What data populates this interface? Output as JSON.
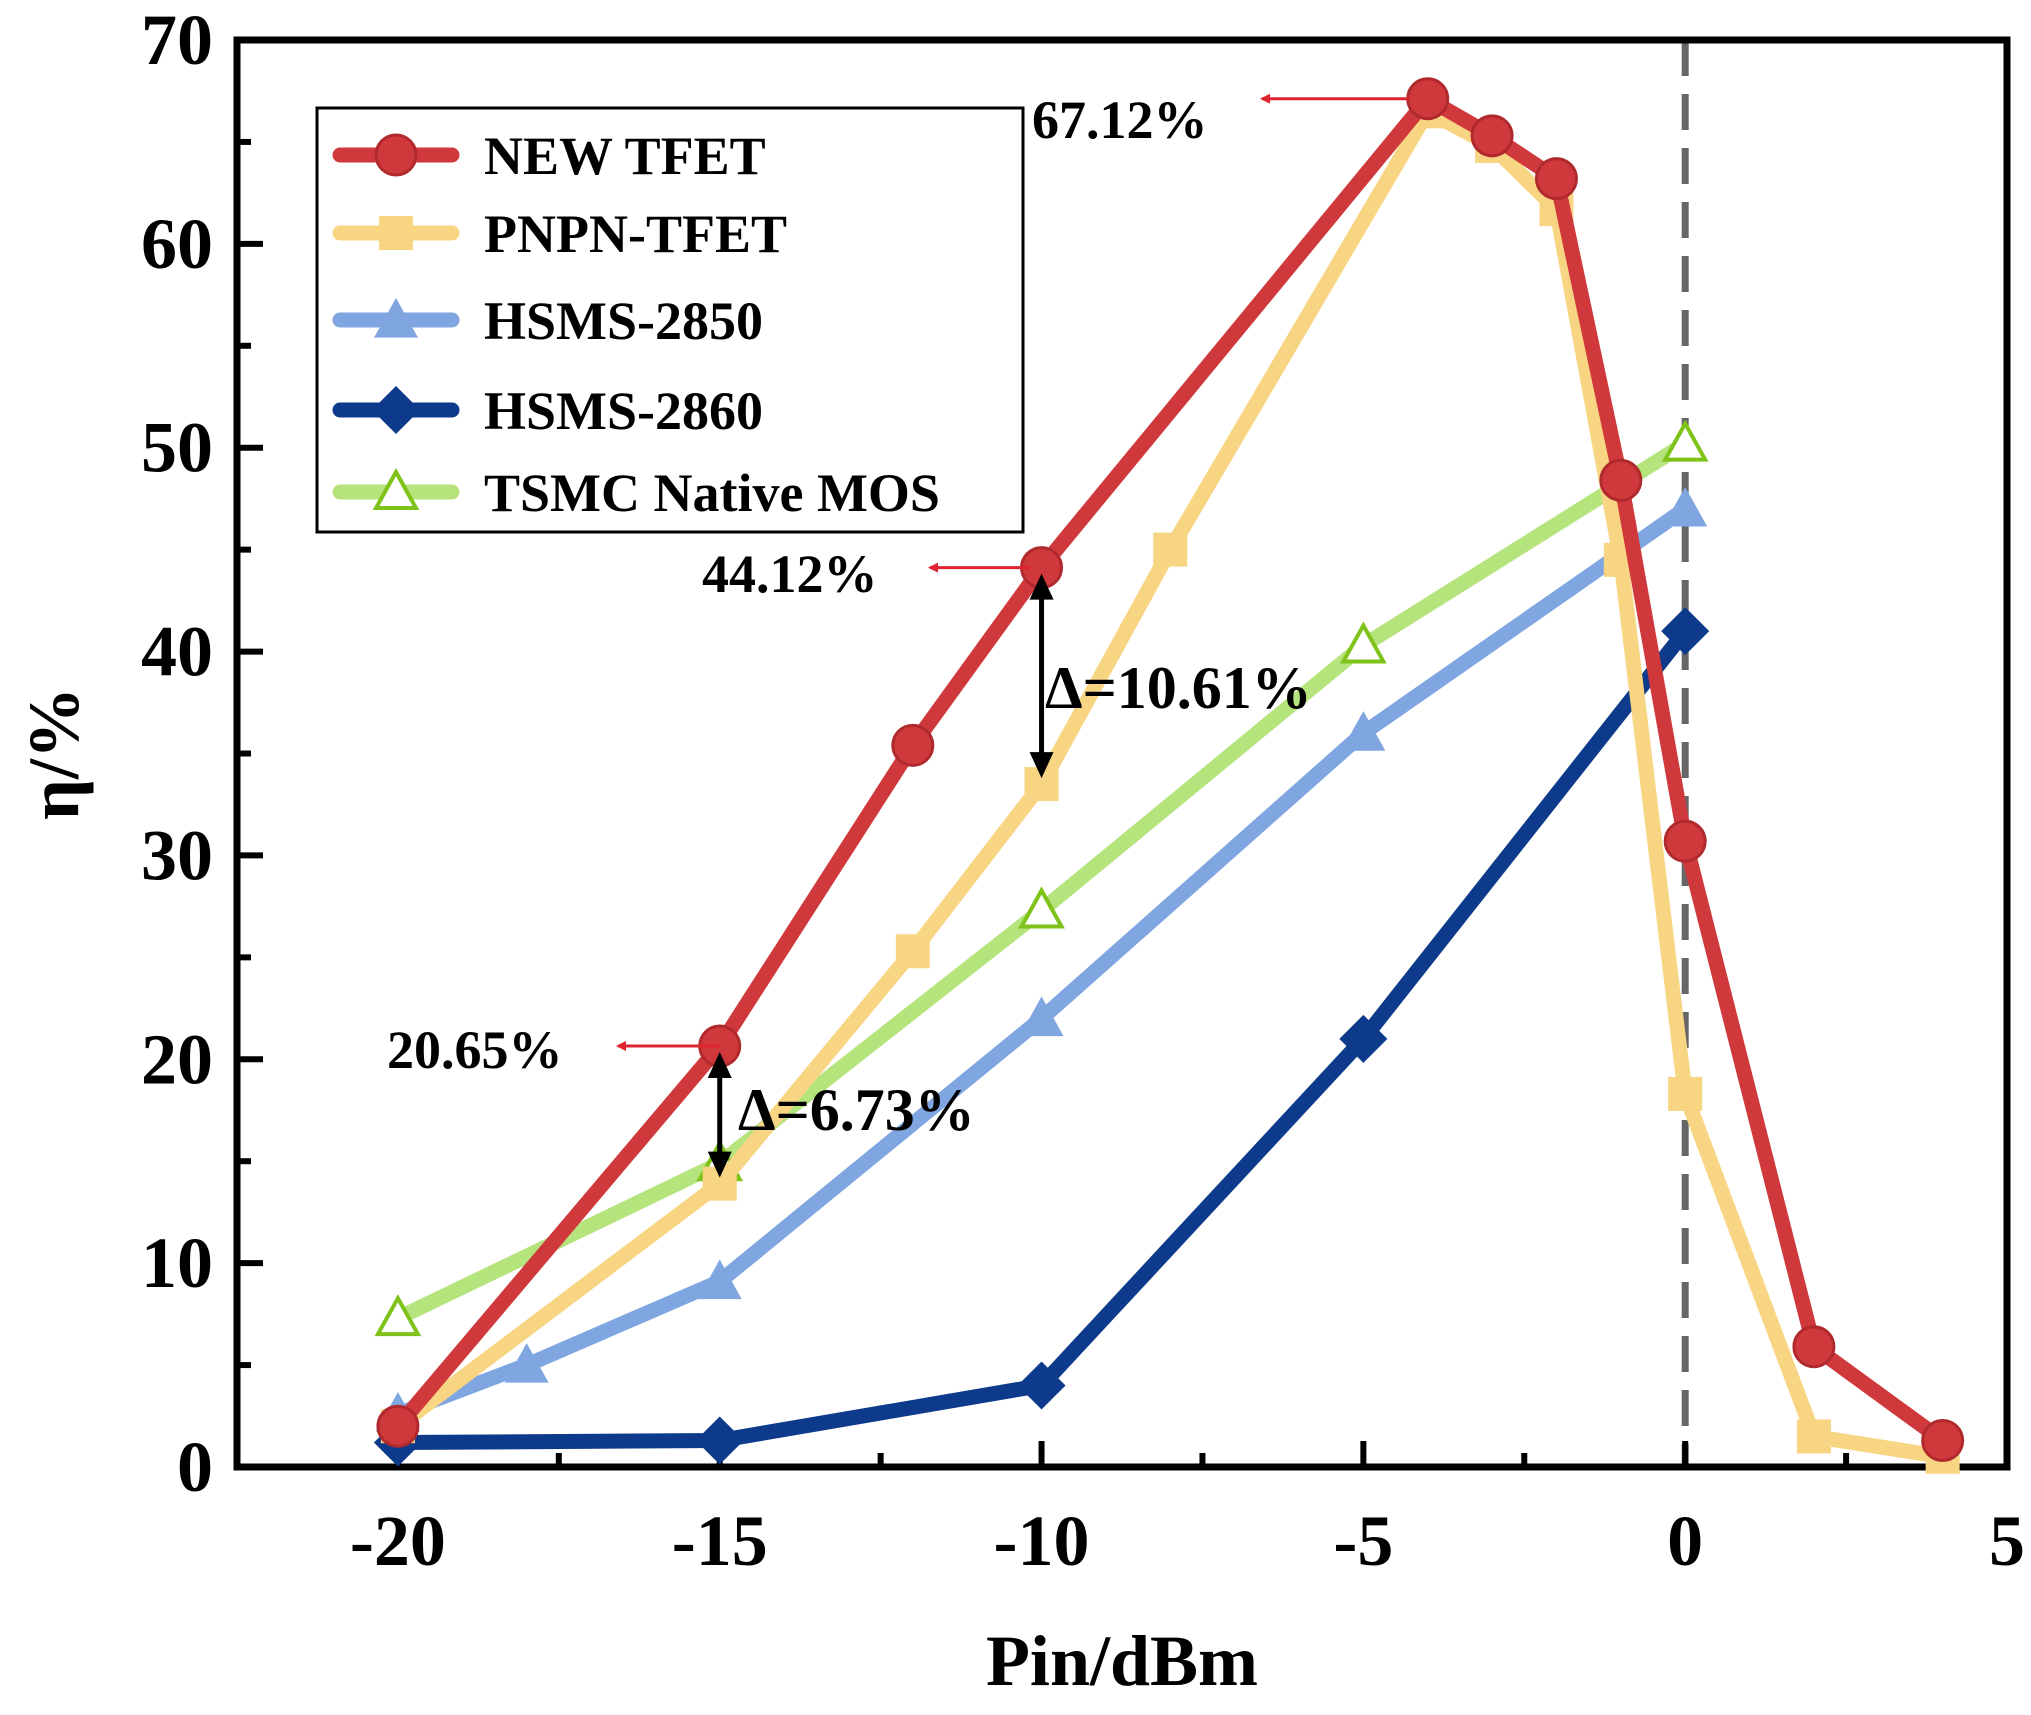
{
  "chart_data": {
    "type": "line",
    "title": "",
    "xlabel": "Pin/dBm",
    "ylabel": "η/%",
    "xlim": [
      -22.5,
      5
    ],
    "ylim": [
      0,
      70
    ],
    "xticks": [
      -20,
      -15,
      -10,
      -5,
      0,
      5
    ],
    "yticks": [
      0,
      10,
      20,
      30,
      40,
      50,
      60,
      70
    ],
    "xtick_labels": [
      "-20",
      "-15",
      "-10",
      "-5",
      "0",
      "5"
    ],
    "ytick_labels": [
      "0",
      "10",
      "20",
      "30",
      "40",
      "50",
      "60",
      "70"
    ],
    "reference_line_x": 0,
    "legend_position": "top-left",
    "series": [
      {
        "name": "TSMC Native MOS",
        "color": "#b5e37c",
        "marker": "triangle-open",
        "x": [
          -20,
          -15,
          -10,
          -5,
          0
        ],
        "y": [
          7.3,
          14.9,
          27.3,
          40.3,
          50.2
        ]
      },
      {
        "name": "HSMS-2850",
        "color": "#7fa6e0",
        "marker": "triangle",
        "x": [
          -20,
          -18,
          -15,
          -10,
          -5,
          0
        ],
        "y": [
          2.6,
          5.0,
          9.1,
          22.0,
          36.0,
          47.0
        ]
      },
      {
        "name": "HSMS-2860",
        "color": "#0d3a8a",
        "marker": "diamond",
        "x": [
          -20,
          -15,
          -10,
          -5,
          0
        ],
        "y": [
          1.2,
          1.3,
          4.0,
          21.0,
          41.0
        ]
      },
      {
        "name": "PNPN-TFET",
        "color": "#f8d582",
        "marker": "square",
        "x": [
          -20,
          -15,
          -12,
          -10,
          -8,
          -4,
          -3,
          -2,
          -1,
          0,
          2,
          4
        ],
        "y": [
          2.0,
          13.9,
          25.3,
          33.5,
          45.0,
          66.5,
          64.8,
          61.7,
          44.5,
          18.3,
          1.5,
          0.5
        ]
      },
      {
        "name": "NEW TFET",
        "color": "#d0393b",
        "marker": "circle",
        "x": [
          -20,
          -15,
          -12,
          -10,
          -4,
          -3,
          -2,
          -1,
          0,
          2,
          4
        ],
        "y": [
          2.0,
          20.65,
          35.4,
          44.12,
          67.12,
          65.3,
          63.2,
          48.4,
          30.7,
          5.9,
          1.3
        ]
      }
    ],
    "legend_order": [
      "NEW TFET",
      "PNPN-TFET",
      "HSMS-2850",
      "HSMS-2860",
      "TSMC Native MOS"
    ],
    "annotations": [
      {
        "text": "67.12%",
        "x": -4,
        "y": 67.12
      },
      {
        "text": "44.12%",
        "x": -10,
        "y": 44.12
      },
      {
        "text": "20.65%",
        "x": -15,
        "y": 20.65
      },
      {
        "text": "Δ=10.61%",
        "x": -10,
        "y_from": 44.12,
        "y_to": 33.5
      },
      {
        "text": "Δ=6.73%",
        "x": -15,
        "y_from": 20.65,
        "y_to": 13.9
      }
    ]
  }
}
